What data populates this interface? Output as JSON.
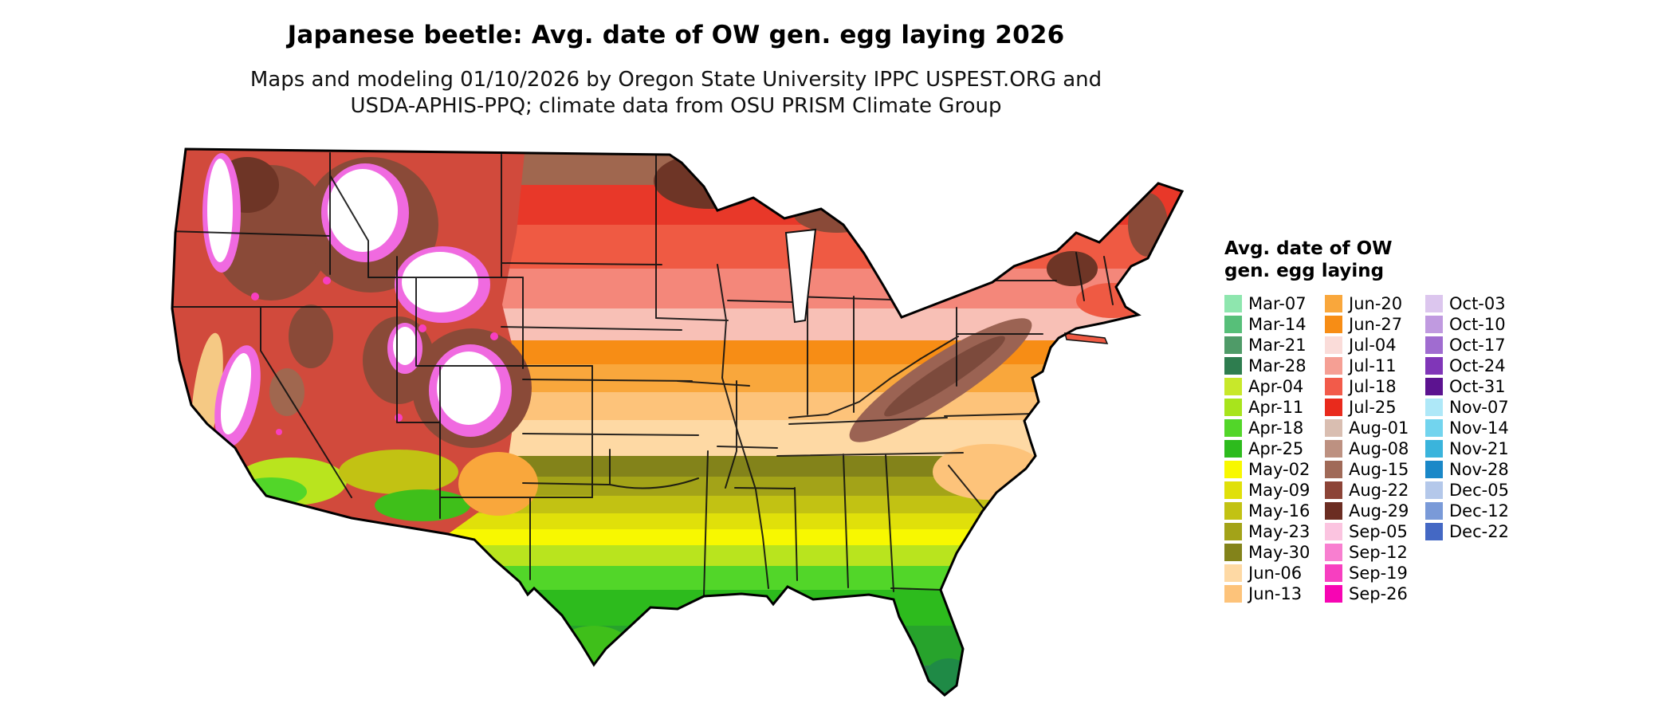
{
  "title": "Japanese beetle: Avg. date of OW gen. egg laying 2026",
  "subtitle": {
    "line1": "Maps and modeling 01/10/2026 by Oregon State University IPPC USPEST.ORG and",
    "line2": "USDA-APHIS-PPQ; climate data from OSU PRISM Climate Group"
  },
  "map": {
    "description": "Contiguous United States choropleth map of average overwintered-generation egg laying dates"
  },
  "legend": {
    "title_line1": "Avg. date of OW",
    "title_line2": "gen. egg laying",
    "columns": [
      [
        {
          "label": "Mar-07",
          "color": "#8ee6ae"
        },
        {
          "label": "Mar-14",
          "color": "#57bf79"
        },
        {
          "label": "Mar-21",
          "color": "#4f9b68"
        },
        {
          "label": "Mar-28",
          "color": "#2e7d4f"
        },
        {
          "label": "Apr-04",
          "color": "#c8e82a"
        },
        {
          "label": "Apr-11",
          "color": "#a8e41c"
        },
        {
          "label": "Apr-18",
          "color": "#52d629"
        },
        {
          "label": "Apr-25",
          "color": "#2dbb1d"
        },
        {
          "label": "May-02",
          "color": "#f8f800"
        },
        {
          "label": "May-09",
          "color": "#e0e00a"
        },
        {
          "label": "May-16",
          "color": "#c2c213"
        },
        {
          "label": "May-23",
          "color": "#a3a318"
        },
        {
          "label": "May-30",
          "color": "#83831a"
        },
        {
          "label": "Jun-06",
          "color": "#fed9a4"
        },
        {
          "label": "Jun-13",
          "color": "#fdc37a"
        }
      ],
      [
        {
          "label": "Jun-20",
          "color": "#f9a73c"
        },
        {
          "label": "Jun-27",
          "color": "#f78d15"
        },
        {
          "label": "Jul-04",
          "color": "#fadcd9"
        },
        {
          "label": "Jul-11",
          "color": "#f59f94"
        },
        {
          "label": "Jul-18",
          "color": "#f25b4a"
        },
        {
          "label": "Jul-25",
          "color": "#e92a1c"
        },
        {
          "label": "Aug-01",
          "color": "#d9beb1"
        },
        {
          "label": "Aug-08",
          "color": "#bd9181"
        },
        {
          "label": "Aug-15",
          "color": "#a06a58"
        },
        {
          "label": "Aug-22",
          "color": "#8c4437"
        },
        {
          "label": "Aug-29",
          "color": "#6b2d22"
        },
        {
          "label": "Sep-05",
          "color": "#fbc4e0"
        },
        {
          "label": "Sep-12",
          "color": "#f87fd0"
        },
        {
          "label": "Sep-19",
          "color": "#f73fc0"
        },
        {
          "label": "Sep-26",
          "color": "#f705b3"
        }
      ],
      [
        {
          "label": "Oct-03",
          "color": "#dcc6ee"
        },
        {
          "label": "Oct-10",
          "color": "#c09ae0"
        },
        {
          "label": "Oct-17",
          "color": "#a06cd0"
        },
        {
          "label": "Oct-24",
          "color": "#8036b8"
        },
        {
          "label": "Oct-31",
          "color": "#5c1390"
        },
        {
          "label": "Nov-07",
          "color": "#aee8f8"
        },
        {
          "label": "Nov-14",
          "color": "#72d4ee"
        },
        {
          "label": "Nov-21",
          "color": "#3ab4dc"
        },
        {
          "label": "Nov-28",
          "color": "#1a88c8"
        },
        {
          "label": "Dec-05",
          "color": "#b4c8ea"
        },
        {
          "label": "Dec-12",
          "color": "#7a9ad8"
        },
        {
          "label": "Dec-22",
          "color": "#4468c4"
        }
      ]
    ]
  }
}
